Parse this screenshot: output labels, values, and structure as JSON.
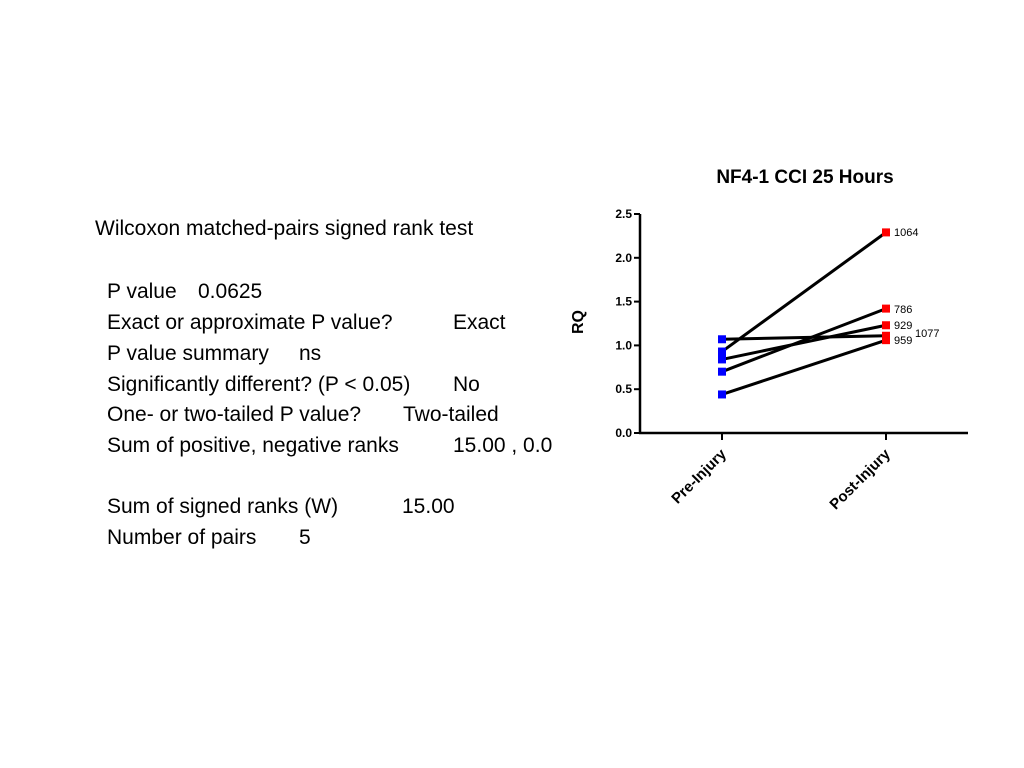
{
  "stats": {
    "title": "Wilcoxon matched-pairs signed rank test",
    "rows": [
      {
        "label": "P value",
        "value": "0.0625"
      },
      {
        "label": "Exact or approximate P value?",
        "value": "Exact"
      },
      {
        "label": "P value summary",
        "value": "ns"
      },
      {
        "label": "Significantly different? (P < 0.05)",
        "value": "No"
      },
      {
        "label": "One- or two-tailed P value?",
        "value": "Two-tailed"
      },
      {
        "label": "Sum of positive, negative ranks",
        "value": "15.00 , 0.0"
      },
      {
        "label": "Sum of signed ranks (W)",
        "value": "15.00"
      },
      {
        "label": "Number of pairs",
        "value": "5"
      }
    ]
  },
  "chart_data": {
    "type": "line",
    "title": "NF4-1 CCI 25 Hours",
    "xlabel": "",
    "ylabel": "RQ",
    "categories": [
      "Pre-Injury",
      "Post-Injury"
    ],
    "ylim": [
      0,
      2.5
    ],
    "yticks": [
      "0.0",
      "0.5",
      "1.0",
      "1.5",
      "2.0",
      "2.5"
    ],
    "grid": false,
    "colors": {
      "pre": "#0000ff",
      "post": "#ff0000",
      "line": "#000000"
    },
    "series": [
      {
        "name": "1064",
        "values": [
          0.93,
          2.29
        ]
      },
      {
        "name": "786",
        "values": [
          0.7,
          1.42
        ]
      },
      {
        "name": "929",
        "values": [
          0.84,
          1.23
        ]
      },
      {
        "name": "1077",
        "values": [
          1.07,
          1.11
        ]
      },
      {
        "name": "959",
        "values": [
          0.44,
          1.06
        ]
      }
    ]
  }
}
